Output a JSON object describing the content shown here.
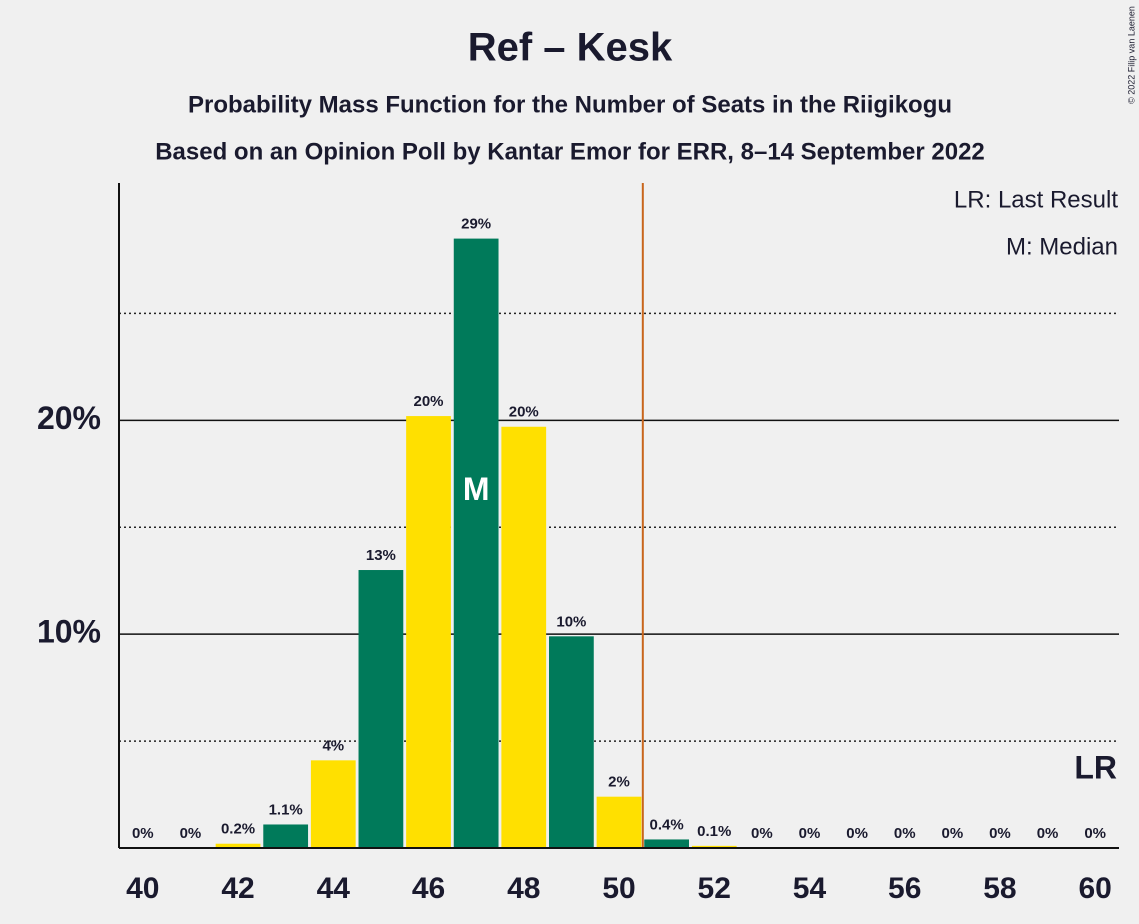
{
  "chart_data": {
    "type": "bar",
    "title": "Ref – Kesk",
    "subtitle": "Probability Mass Function for the Number of Seats in the Riigikogu",
    "subtitle2": "Based on an Opinion Poll by Kantar Emor for ERR, 8–14 September 2022",
    "x": [
      40,
      41,
      42,
      43,
      44,
      45,
      46,
      47,
      48,
      49,
      50,
      51,
      52,
      53,
      54,
      55,
      56,
      57,
      58,
      59,
      60
    ],
    "values": [
      0,
      0,
      0.2,
      1.1,
      4.1,
      13.0,
      20.2,
      28.5,
      19.7,
      9.9,
      2.4,
      0.4,
      0.1,
      0,
      0,
      0,
      0,
      0,
      0,
      0,
      0
    ],
    "value_labels": [
      "0%",
      "0%",
      "0.2%",
      "1.1%",
      "4%",
      "13%",
      "20%",
      "29%",
      "20%",
      "10%",
      "2%",
      "0.4%",
      "0.1%",
      "0%",
      "0%",
      "0%",
      "0%",
      "0%",
      "0%",
      "0%",
      "0%"
    ],
    "colors": [
      "#007a5a",
      "#ffe000",
      "#ffe000",
      "#007a5a",
      "#ffe000",
      "#007a5a",
      "#ffe000",
      "#007a5a",
      "#ffe000",
      "#007a5a",
      "#ffe000",
      "#007a5a",
      "#ffe000",
      "#007a5a",
      "#ffe000",
      "#007a5a",
      "#ffe000",
      "#007a5a",
      "#ffe000",
      "#007a5a",
      "#ffe000"
    ],
    "xlim": [
      39.5,
      60.5
    ],
    "xticks": [
      40,
      42,
      44,
      46,
      48,
      50,
      52,
      54,
      56,
      58,
      60
    ],
    "ylim": [
      0,
      31.1
    ],
    "yticks": [
      {
        "value": 10,
        "label": "10%"
      },
      {
        "value": 20,
        "label": "20%"
      }
    ],
    "minor_yticks": [
      5,
      15,
      25
    ],
    "last_result": 50.5,
    "last_result_label": "LR",
    "last_result_color": "#c8651c",
    "median": 47,
    "median_label": "M",
    "legend": [
      "LR: Last Result",
      "M: Median"
    ],
    "copyright": "© 2022 Filip van Laenen"
  }
}
